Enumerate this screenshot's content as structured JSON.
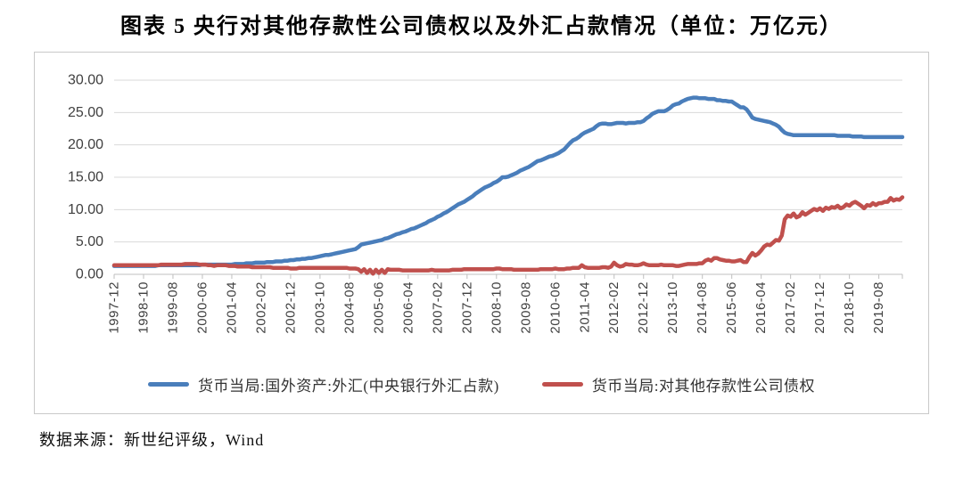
{
  "title": "图表 5  央行对其他存款性公司债权以及外汇占款情况（单位：万亿元）",
  "source_note": "数据来源：新世纪评级，Wind",
  "colors": {
    "forex_line": "#4a7ebb",
    "claims_line": "#c0504d",
    "gridline": "#d9d9d9",
    "axis": "#bfbfbf",
    "tick_text": "#404040"
  },
  "chart_data": {
    "type": "line",
    "title": "图表 5  央行对其他存款性公司债权以及外汇占款情况（单位：万亿元）",
    "xlabel": "",
    "ylabel": "",
    "ylim": [
      0,
      30
    ],
    "y_tick_step": 5,
    "y_tick_labels": [
      "30.00",
      "25.00",
      "20.00",
      "15.00",
      "10.00",
      "5.00",
      "0.00"
    ],
    "grid": true,
    "legend_position": "bottom",
    "x_sampling": "monthly starting 1997-12, one value per month, tick every 10 months",
    "x_tick_labels": [
      "1997-12",
      "1998-10",
      "1999-08",
      "2000-06",
      "2001-04",
      "2002-02",
      "2002-12",
      "2003-10",
      "2004-08",
      "2005-06",
      "2006-04",
      "2007-02",
      "2007-12",
      "2008-10",
      "2009-08",
      "2010-06",
      "2011-04",
      "2012-02",
      "2012-12",
      "2013-10",
      "2014-08",
      "2015-06",
      "2016-04",
      "2017-02",
      "2017-12",
      "2018-10",
      "2019-08"
    ],
    "series": [
      {
        "name": "货币当局:国外资产:外汇(中央银行外汇占款)",
        "color": "#4a7ebb",
        "values": [
          1.3,
          1.3,
          1.3,
          1.3,
          1.3,
          1.3,
          1.3,
          1.3,
          1.3,
          1.3,
          1.3,
          1.3,
          1.3,
          1.3,
          1.3,
          1.4,
          1.4,
          1.4,
          1.4,
          1.4,
          1.4,
          1.4,
          1.4,
          1.4,
          1.4,
          1.4,
          1.4,
          1.4,
          1.4,
          1.4,
          1.5,
          1.5,
          1.5,
          1.5,
          1.5,
          1.5,
          1.5,
          1.5,
          1.5,
          1.5,
          1.5,
          1.6,
          1.6,
          1.6,
          1.6,
          1.7,
          1.7,
          1.7,
          1.8,
          1.8,
          1.8,
          1.8,
          1.9,
          1.9,
          1.9,
          2.0,
          2.0,
          2.0,
          2.1,
          2.1,
          2.2,
          2.2,
          2.3,
          2.3,
          2.4,
          2.4,
          2.5,
          2.5,
          2.6,
          2.7,
          2.8,
          2.9,
          3.0,
          3.0,
          3.1,
          3.2,
          3.3,
          3.4,
          3.5,
          3.6,
          3.7,
          3.8,
          3.9,
          4.2,
          4.6,
          4.7,
          4.8,
          4.9,
          5.0,
          5.1,
          5.2,
          5.3,
          5.5,
          5.6,
          5.8,
          6.0,
          6.2,
          6.3,
          6.5,
          6.6,
          6.8,
          7.0,
          7.1,
          7.3,
          7.5,
          7.7,
          7.9,
          8.2,
          8.4,
          8.6,
          8.9,
          9.1,
          9.4,
          9.6,
          9.9,
          10.2,
          10.5,
          10.8,
          11.0,
          11.2,
          11.5,
          11.8,
          12.1,
          12.5,
          12.8,
          13.1,
          13.4,
          13.6,
          13.8,
          14.1,
          14.3,
          14.6,
          15.0,
          15.0,
          15.1,
          15.3,
          15.5,
          15.7,
          16.0,
          16.2,
          16.4,
          16.6,
          16.9,
          17.2,
          17.5,
          17.6,
          17.8,
          18.0,
          18.2,
          18.3,
          18.5,
          18.7,
          19.0,
          19.3,
          19.8,
          20.3,
          20.7,
          20.9,
          21.2,
          21.6,
          21.9,
          22.1,
          22.3,
          22.5,
          22.9,
          23.2,
          23.3,
          23.3,
          23.2,
          23.2,
          23.3,
          23.4,
          23.4,
          23.4,
          23.3,
          23.4,
          23.4,
          23.4,
          23.5,
          23.5,
          23.7,
          24.1,
          24.4,
          24.8,
          25.0,
          25.2,
          25.2,
          25.2,
          25.4,
          25.7,
          26.1,
          26.3,
          26.4,
          26.7,
          26.9,
          27.1,
          27.2,
          27.3,
          27.3,
          27.2,
          27.2,
          27.2,
          27.1,
          27.1,
          27.1,
          26.9,
          26.9,
          26.8,
          26.8,
          26.7,
          26.7,
          26.4,
          26.1,
          25.8,
          25.8,
          25.5,
          24.9,
          24.2,
          24.0,
          23.9,
          23.8,
          23.7,
          23.6,
          23.5,
          23.3,
          23.1,
          22.8,
          22.3,
          21.9,
          21.7,
          21.6,
          21.5,
          21.5,
          21.5,
          21.5,
          21.5,
          21.5,
          21.5,
          21.5,
          21.5,
          21.5,
          21.5,
          21.5,
          21.5,
          21.5,
          21.5,
          21.4,
          21.4,
          21.4,
          21.4,
          21.4,
          21.3,
          21.3,
          21.3,
          21.3,
          21.2,
          21.2,
          21.2,
          21.2,
          21.2,
          21.2,
          21.2,
          21.2,
          21.2,
          21.2,
          21.2,
          21.2,
          21.2,
          21.2
        ]
      },
      {
        "name": "货币当局:对其他存款性公司债权",
        "color": "#c0504d",
        "values": [
          1.4,
          1.4,
          1.4,
          1.4,
          1.4,
          1.4,
          1.4,
          1.4,
          1.4,
          1.4,
          1.4,
          1.4,
          1.4,
          1.4,
          1.4,
          1.4,
          1.5,
          1.5,
          1.5,
          1.5,
          1.5,
          1.5,
          1.5,
          1.5,
          1.6,
          1.6,
          1.6,
          1.6,
          1.6,
          1.5,
          1.5,
          1.5,
          1.4,
          1.4,
          1.3,
          1.4,
          1.4,
          1.4,
          1.4,
          1.3,
          1.3,
          1.3,
          1.2,
          1.2,
          1.2,
          1.2,
          1.2,
          1.1,
          1.1,
          1.1,
          1.1,
          1.1,
          1.1,
          1.1,
          1.0,
          1.0,
          1.0,
          1.0,
          1.0,
          1.0,
          0.9,
          0.9,
          0.9,
          1.0,
          1.0,
          1.0,
          1.0,
          1.0,
          1.0,
          1.0,
          1.0,
          1.0,
          1.0,
          1.0,
          1.0,
          1.0,
          1.0,
          1.0,
          1.0,
          1.0,
          0.9,
          0.9,
          0.9,
          0.8,
          0.4,
          0.8,
          0.2,
          0.7,
          0.1,
          0.7,
          0.2,
          0.7,
          0.2,
          0.8,
          0.7,
          0.7,
          0.7,
          0.7,
          0.6,
          0.6,
          0.6,
          0.6,
          0.6,
          0.6,
          0.6,
          0.6,
          0.6,
          0.6,
          0.7,
          0.6,
          0.6,
          0.6,
          0.6,
          0.6,
          0.6,
          0.7,
          0.7,
          0.7,
          0.7,
          0.8,
          0.8,
          0.8,
          0.8,
          0.8,
          0.8,
          0.8,
          0.8,
          0.8,
          0.8,
          0.8,
          0.9,
          0.9,
          0.8,
          0.8,
          0.8,
          0.8,
          0.7,
          0.7,
          0.7,
          0.7,
          0.7,
          0.7,
          0.7,
          0.7,
          0.7,
          0.8,
          0.8,
          0.8,
          0.8,
          0.8,
          0.9,
          0.8,
          0.8,
          0.8,
          0.9,
          0.9,
          1.0,
          1.0,
          1.0,
          1.4,
          1.1,
          1.0,
          1.0,
          1.0,
          1.0,
          1.0,
          1.1,
          1.1,
          1.0,
          1.2,
          1.8,
          1.4,
          1.2,
          1.3,
          1.6,
          1.5,
          1.5,
          1.4,
          1.4,
          1.5,
          1.7,
          1.5,
          1.4,
          1.4,
          1.4,
          1.4,
          1.5,
          1.4,
          1.4,
          1.4,
          1.4,
          1.3,
          1.3,
          1.4,
          1.5,
          1.6,
          1.6,
          1.6,
          1.6,
          1.7,
          1.7,
          2.1,
          2.3,
          2.1,
          2.5,
          2.5,
          2.3,
          2.2,
          2.1,
          2.1,
          2.0,
          2.0,
          2.1,
          2.2,
          1.9,
          1.9,
          2.7,
          3.3,
          2.9,
          3.2,
          3.7,
          4.3,
          4.6,
          4.5,
          4.9,
          5.3,
          5.2,
          6.0,
          8.5,
          9.1,
          8.9,
          9.4,
          8.8,
          9.0,
          9.6,
          9.2,
          9.5,
          9.8,
          10.1,
          9.9,
          10.2,
          9.8,
          10.3,
          10.1,
          10.4,
          10.3,
          10.6,
          10.2,
          10.4,
          10.8,
          10.6,
          11.0,
          11.2,
          10.9,
          10.6,
          10.2,
          10.7,
          10.6,
          11.0,
          10.7,
          11.0,
          11.0,
          11.2,
          11.2,
          11.8,
          11.4,
          11.6,
          11.5,
          11.9
        ]
      }
    ]
  }
}
